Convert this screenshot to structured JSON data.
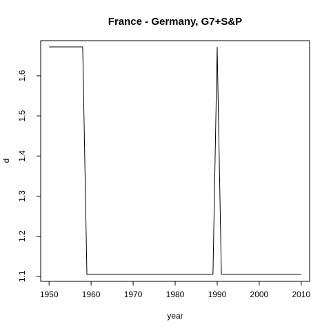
{
  "chart_data": {
    "type": "line",
    "title": "France - Germany, G7+S&P",
    "xlabel": "year",
    "ylabel": "d",
    "xlim": [
      1948,
      2012
    ],
    "ylim": [
      1.0875,
      1.6875
    ],
    "x_ticks": [
      1950,
      1960,
      1970,
      1980,
      1990,
      2000,
      2010
    ],
    "y_ticks": [
      1.1,
      1.2,
      1.3,
      1.4,
      1.5,
      1.6
    ],
    "y_tick_labels": [
      "1.1",
      "1.2",
      "1.3",
      "1.4",
      "1.5",
      "1.6"
    ],
    "grid": false,
    "legend": "none",
    "line_color": "#000000",
    "series": [
      {
        "x": [
          1950,
          1951,
          1952,
          1953,
          1954,
          1955,
          1956,
          1957,
          1958,
          1959,
          1960,
          1961,
          1962,
          1963,
          1964,
          1965,
          1966,
          1967,
          1968,
          1969,
          1970,
          1971,
          1972,
          1973,
          1974,
          1975,
          1976,
          1977,
          1978,
          1979,
          1980,
          1981,
          1982,
          1983,
          1984,
          1985,
          1986,
          1987,
          1988,
          1989,
          1990,
          1991,
          1992,
          1993,
          1994,
          1995,
          1996,
          1997,
          1998,
          1999,
          2000,
          2001,
          2002,
          2003,
          2004,
          2005,
          2006,
          2007,
          2008,
          2009,
          2010
        ],
        "values": [
          1.672,
          1.672,
          1.672,
          1.672,
          1.672,
          1.672,
          1.672,
          1.672,
          1.672,
          1.105,
          1.105,
          1.105,
          1.105,
          1.105,
          1.105,
          1.105,
          1.105,
          1.105,
          1.105,
          1.105,
          1.105,
          1.105,
          1.105,
          1.105,
          1.105,
          1.105,
          1.105,
          1.105,
          1.105,
          1.105,
          1.105,
          1.105,
          1.105,
          1.105,
          1.105,
          1.105,
          1.105,
          1.105,
          1.105,
          1.105,
          1.672,
          1.105,
          1.105,
          1.105,
          1.105,
          1.105,
          1.105,
          1.105,
          1.105,
          1.105,
          1.105,
          1.105,
          1.105,
          1.105,
          1.105,
          1.105,
          1.105,
          1.105,
          1.105,
          1.105,
          1.105
        ]
      }
    ]
  }
}
